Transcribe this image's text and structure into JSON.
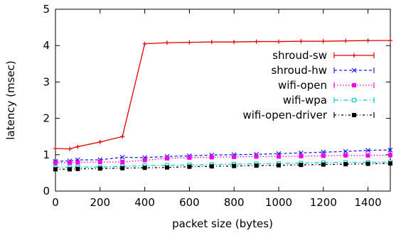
{
  "chart_data": {
    "type": "line",
    "title": "",
    "xlabel": "packet size (bytes)",
    "ylabel": "latency (msec)",
    "xlim": [
      0,
      1500
    ],
    "ylim": [
      0,
      5
    ],
    "xticks": [
      0,
      200,
      400,
      600,
      800,
      1000,
      1200,
      1400
    ],
    "yticks": [
      0,
      1,
      2,
      3,
      4,
      5
    ],
    "grid": false,
    "legend_position": "right",
    "series": [
      {
        "name": "shroud-sw",
        "color": "#e00000",
        "dash": "solid",
        "marker": "plus",
        "x": [
          0,
          64,
          100,
          200,
          300,
          400,
          500,
          600,
          700,
          800,
          900,
          1000,
          1100,
          1200,
          1300,
          1400,
          1500
        ],
        "y": [
          1.17,
          1.16,
          1.22,
          1.35,
          1.5,
          4.05,
          4.08,
          4.09,
          4.1,
          4.1,
          4.11,
          4.11,
          4.12,
          4.12,
          4.13,
          4.14,
          4.14
        ]
      },
      {
        "name": "shroud-hw",
        "color": "#1a1aee",
        "dash": "dashed",
        "marker": "x",
        "x": [
          0,
          64,
          100,
          200,
          300,
          400,
          500,
          600,
          700,
          800,
          900,
          1000,
          1100,
          1200,
          1300,
          1400,
          1500
        ],
        "y": [
          0.82,
          0.83,
          0.86,
          0.86,
          0.93,
          0.92,
          0.95,
          0.97,
          0.99,
          1.0,
          1.01,
          1.03,
          1.05,
          1.07,
          1.09,
          1.12,
          1.13
        ]
      },
      {
        "name": "wifi-open",
        "color": "#ee00ee",
        "dash": "dotted",
        "marker": "square",
        "x": [
          0,
          64,
          100,
          200,
          300,
          400,
          500,
          600,
          700,
          800,
          900,
          1000,
          1100,
          1200,
          1300,
          1400,
          1500
        ],
        "y": [
          0.78,
          0.78,
          0.79,
          0.8,
          0.8,
          0.85,
          0.9,
          0.92,
          0.93,
          0.94,
          0.95,
          0.95,
          0.96,
          0.97,
          0.98,
          0.98,
          0.99
        ]
      },
      {
        "name": "wifi-wpa",
        "color": "#00d0d0",
        "dash": "dashdot",
        "marker": "square-open",
        "x": [
          0,
          64,
          100,
          200,
          300,
          400,
          500,
          600,
          700,
          800,
          900,
          1000,
          1100,
          1200,
          1300,
          1400,
          1500
        ],
        "y": [
          0.65,
          0.65,
          0.66,
          0.66,
          0.68,
          0.7,
          0.71,
          0.72,
          0.73,
          0.74,
          0.75,
          0.76,
          0.77,
          0.78,
          0.79,
          0.79,
          0.8
        ]
      },
      {
        "name": "wifi-open-driver",
        "color": "#000000",
        "dash": "dashdot2",
        "marker": "square",
        "x": [
          0,
          64,
          100,
          200,
          300,
          400,
          500,
          600,
          700,
          800,
          900,
          1000,
          1100,
          1200,
          1300,
          1400,
          1500
        ],
        "y": [
          0.6,
          0.6,
          0.61,
          0.62,
          0.63,
          0.64,
          0.65,
          0.67,
          0.68,
          0.69,
          0.7,
          0.71,
          0.72,
          0.73,
          0.74,
          0.75,
          0.76
        ]
      }
    ]
  }
}
